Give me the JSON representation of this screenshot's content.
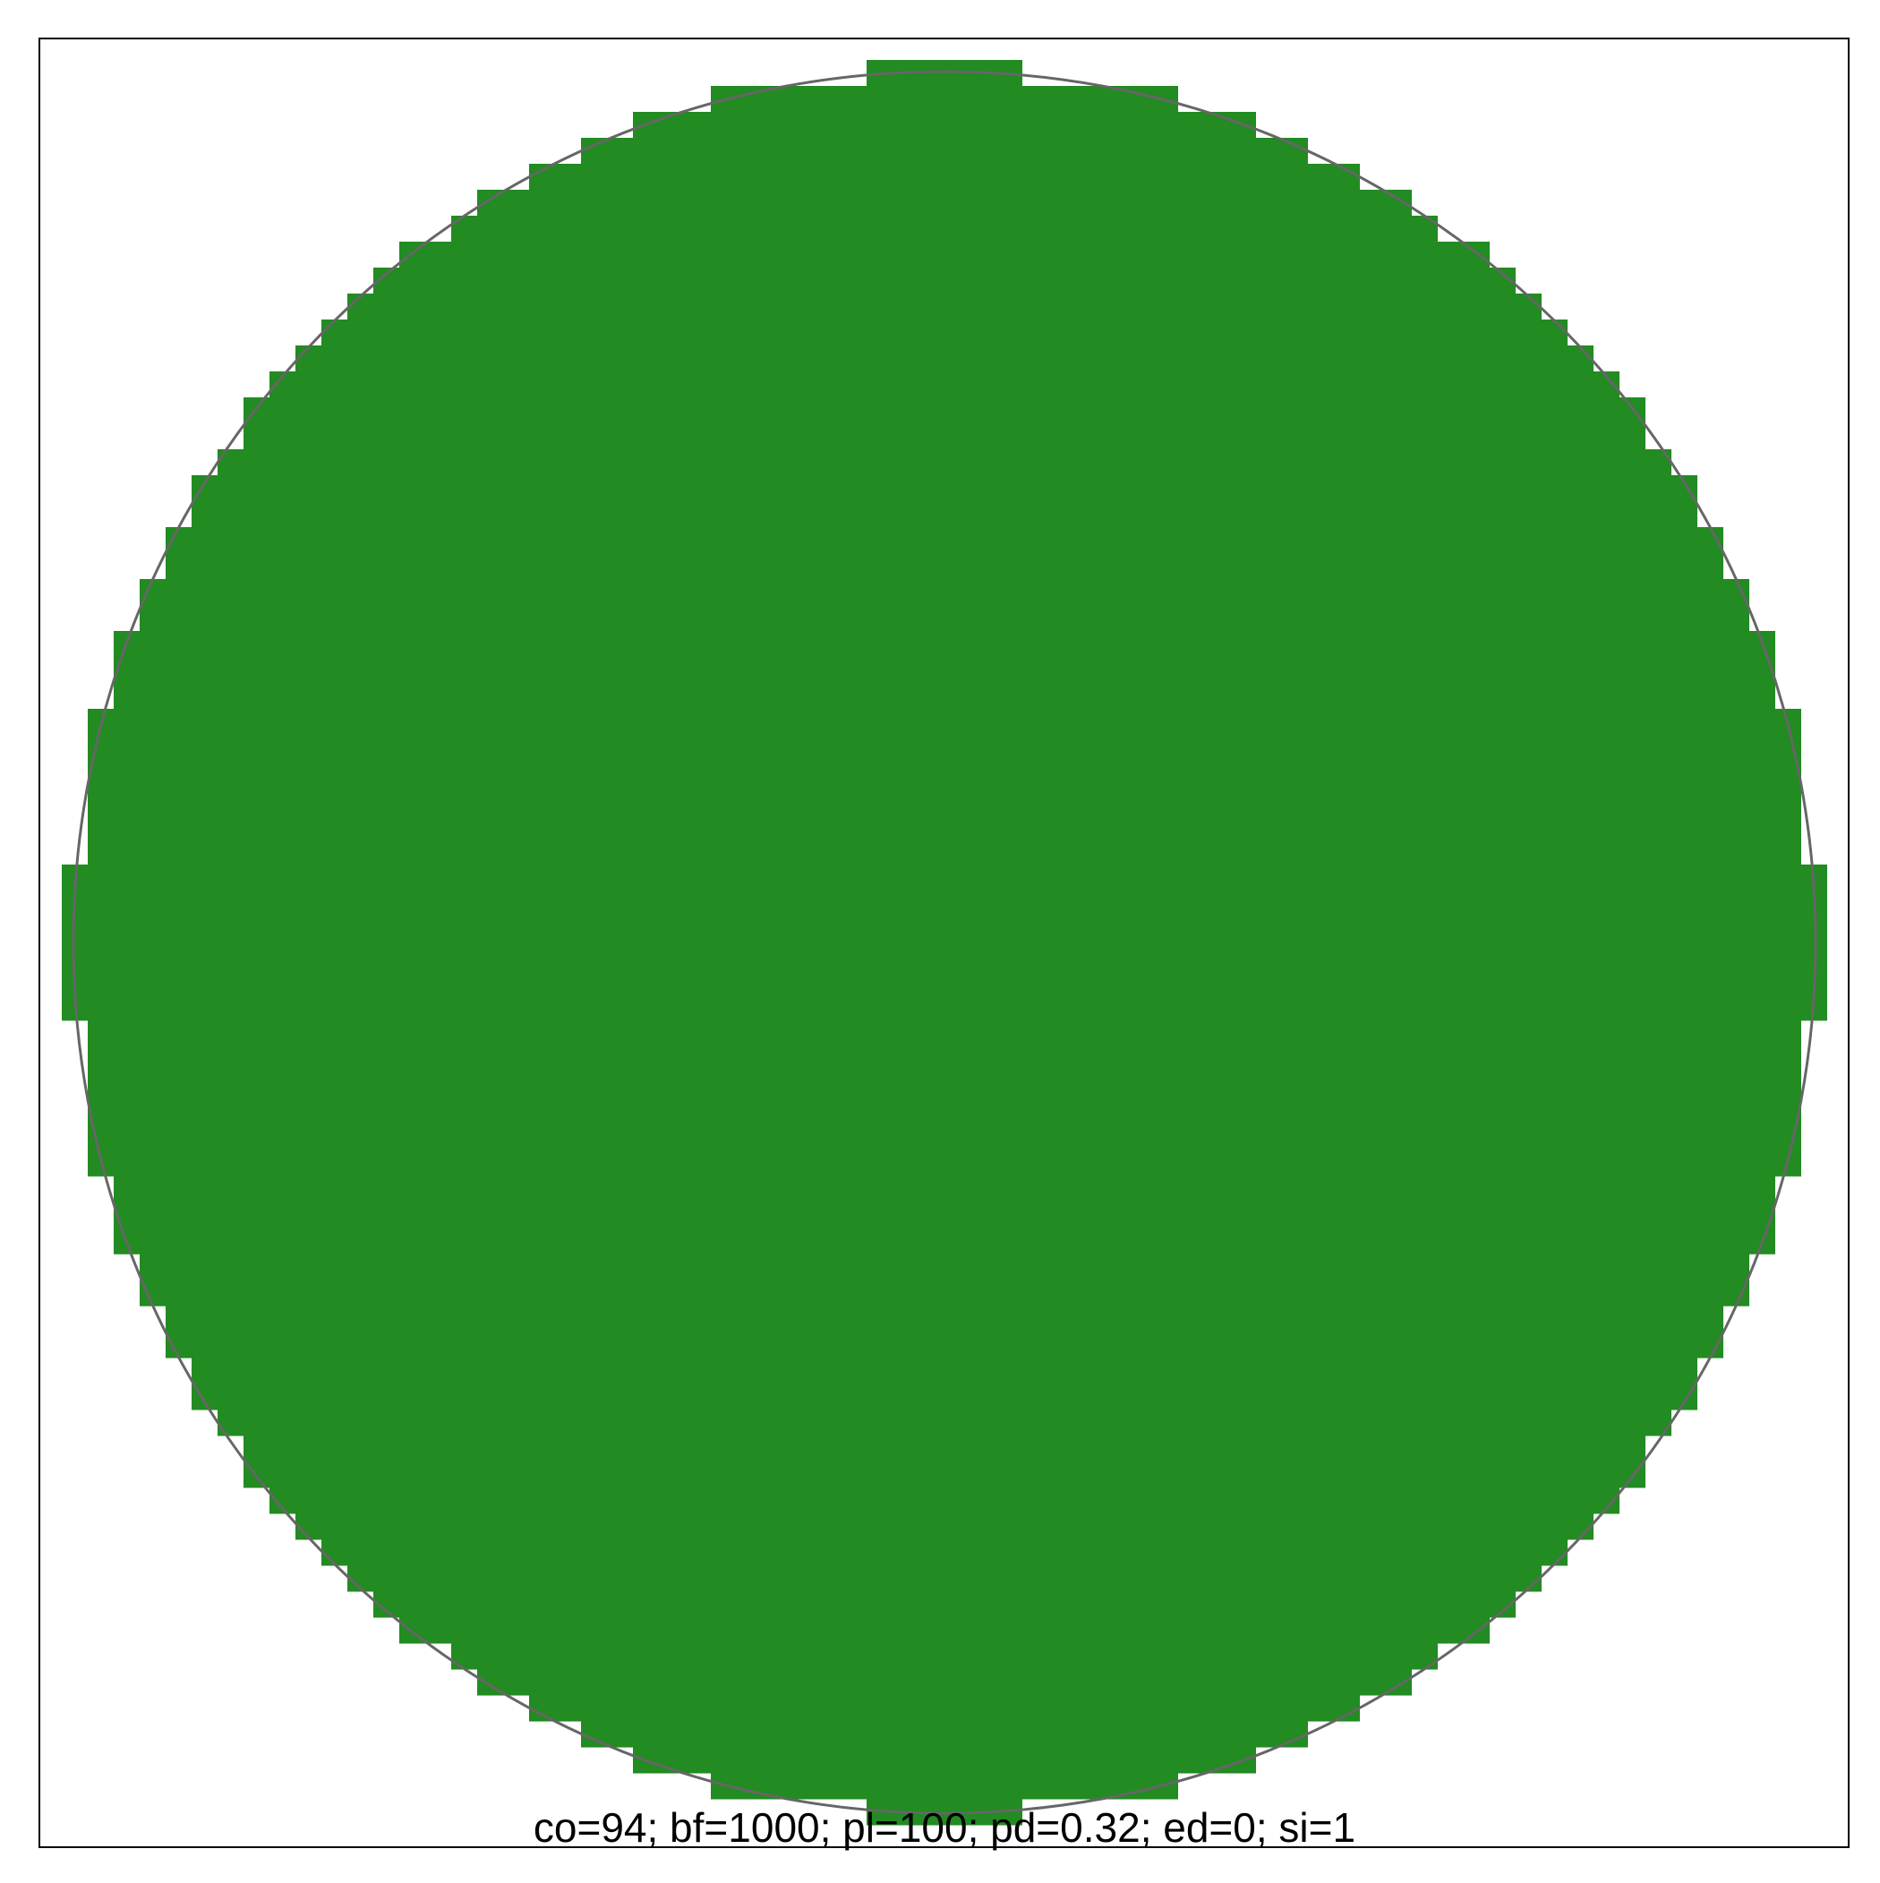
{
  "figure": {
    "caption": "co=94; bf=1000; pl=100; pd=0.32; ed=0; si=1",
    "colors": {
      "fill": "#228B22",
      "circle_outline": "#666666",
      "frame": "#000000",
      "background": "#FFFFFF"
    }
  }
}
